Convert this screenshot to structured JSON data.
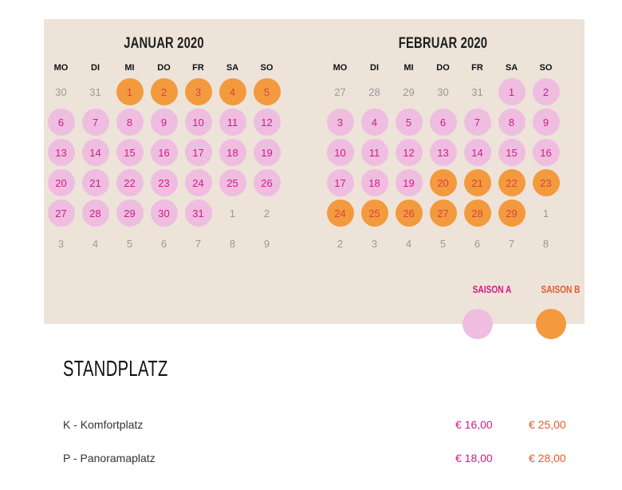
{
  "calendar": {
    "weekdays": [
      "MO",
      "DI",
      "MI",
      "DO",
      "FR",
      "SA",
      "SO"
    ],
    "months": [
      {
        "title": "JANUAR 2020",
        "days": [
          {
            "n": "30",
            "s": ""
          },
          {
            "n": "31",
            "s": ""
          },
          {
            "n": "1",
            "s": "b"
          },
          {
            "n": "2",
            "s": "b"
          },
          {
            "n": "3",
            "s": "b"
          },
          {
            "n": "4",
            "s": "b"
          },
          {
            "n": "5",
            "s": "b"
          },
          {
            "n": "6",
            "s": "a"
          },
          {
            "n": "7",
            "s": "a"
          },
          {
            "n": "8",
            "s": "a"
          },
          {
            "n": "9",
            "s": "a"
          },
          {
            "n": "10",
            "s": "a"
          },
          {
            "n": "11",
            "s": "a"
          },
          {
            "n": "12",
            "s": "a"
          },
          {
            "n": "13",
            "s": "a"
          },
          {
            "n": "14",
            "s": "a"
          },
          {
            "n": "15",
            "s": "a"
          },
          {
            "n": "16",
            "s": "a"
          },
          {
            "n": "17",
            "s": "a"
          },
          {
            "n": "18",
            "s": "a"
          },
          {
            "n": "19",
            "s": "a"
          },
          {
            "n": "20",
            "s": "a"
          },
          {
            "n": "21",
            "s": "a"
          },
          {
            "n": "22",
            "s": "a"
          },
          {
            "n": "23",
            "s": "a"
          },
          {
            "n": "24",
            "s": "a"
          },
          {
            "n": "25",
            "s": "a"
          },
          {
            "n": "26",
            "s": "a"
          },
          {
            "n": "27",
            "s": "a"
          },
          {
            "n": "28",
            "s": "a"
          },
          {
            "n": "29",
            "s": "a"
          },
          {
            "n": "30",
            "s": "a"
          },
          {
            "n": "31",
            "s": "a"
          },
          {
            "n": "1",
            "s": ""
          },
          {
            "n": "2",
            "s": ""
          },
          {
            "n": "3",
            "s": ""
          },
          {
            "n": "4",
            "s": ""
          },
          {
            "n": "5",
            "s": ""
          },
          {
            "n": "6",
            "s": ""
          },
          {
            "n": "7",
            "s": ""
          },
          {
            "n": "8",
            "s": ""
          },
          {
            "n": "9",
            "s": ""
          }
        ]
      },
      {
        "title": "FEBRUAR 2020",
        "days": [
          {
            "n": "27",
            "s": ""
          },
          {
            "n": "28",
            "s": ""
          },
          {
            "n": "29",
            "s": ""
          },
          {
            "n": "30",
            "s": ""
          },
          {
            "n": "31",
            "s": ""
          },
          {
            "n": "1",
            "s": "a"
          },
          {
            "n": "2",
            "s": "a"
          },
          {
            "n": "3",
            "s": "a"
          },
          {
            "n": "4",
            "s": "a"
          },
          {
            "n": "5",
            "s": "a"
          },
          {
            "n": "6",
            "s": "a"
          },
          {
            "n": "7",
            "s": "a"
          },
          {
            "n": "8",
            "s": "a"
          },
          {
            "n": "9",
            "s": "a"
          },
          {
            "n": "10",
            "s": "a"
          },
          {
            "n": "11",
            "s": "a"
          },
          {
            "n": "12",
            "s": "a"
          },
          {
            "n": "13",
            "s": "a"
          },
          {
            "n": "14",
            "s": "a"
          },
          {
            "n": "15",
            "s": "a"
          },
          {
            "n": "16",
            "s": "a"
          },
          {
            "n": "17",
            "s": "a"
          },
          {
            "n": "18",
            "s": "a"
          },
          {
            "n": "19",
            "s": "a"
          },
          {
            "n": "20",
            "s": "b"
          },
          {
            "n": "21",
            "s": "b"
          },
          {
            "n": "22",
            "s": "b"
          },
          {
            "n": "23",
            "s": "b"
          },
          {
            "n": "24",
            "s": "b"
          },
          {
            "n": "25",
            "s": "b"
          },
          {
            "n": "26",
            "s": "b"
          },
          {
            "n": "27",
            "s": "b"
          },
          {
            "n": "28",
            "s": "b"
          },
          {
            "n": "29",
            "s": "b"
          },
          {
            "n": "1",
            "s": ""
          },
          {
            "n": "2",
            "s": ""
          },
          {
            "n": "3",
            "s": ""
          },
          {
            "n": "4",
            "s": ""
          },
          {
            "n": "5",
            "s": ""
          },
          {
            "n": "6",
            "s": ""
          },
          {
            "n": "7",
            "s": ""
          },
          {
            "n": "8",
            "s": ""
          }
        ]
      }
    ]
  },
  "legend": {
    "season_a": "SAISON A",
    "season_b": "SAISON B",
    "color_a": "#eebde0",
    "color_b": "#f39a3e"
  },
  "pricing": {
    "heading": "STANDPLATZ",
    "rows": [
      {
        "name": "K - Komfortplatz",
        "price_a": "€ 16,00",
        "price_b": "€ 25,00"
      },
      {
        "name": "P - Panoramaplatz",
        "price_a": "€ 18,00",
        "price_b": "€ 28,00"
      }
    ]
  }
}
